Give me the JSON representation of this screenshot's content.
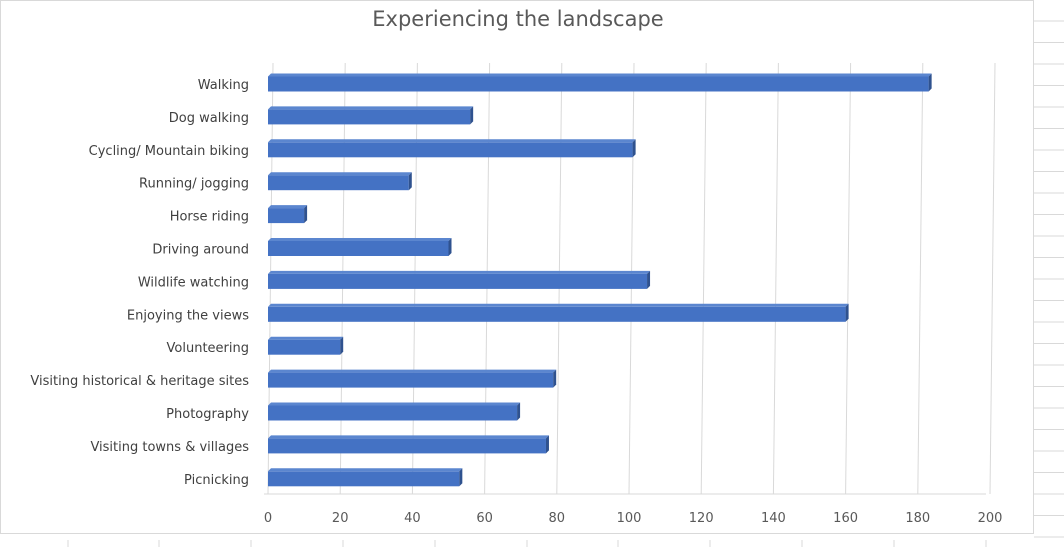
{
  "chart_data": {
    "type": "bar",
    "orientation": "horizontal",
    "title": "Experiencing the landscape",
    "xlabel": "",
    "ylabel": "",
    "categories": [
      "Walking",
      "Dog walking",
      "Cycling/ Mountain biking",
      "Running/ jogging",
      "Horse riding",
      "Driving around",
      "Wildlife watching",
      "Enjoying the views",
      "Volunteering",
      "Visiting historical & heritage sites",
      "Photography",
      "Visiting towns & villages",
      "Picnicking"
    ],
    "values": [
      183,
      56,
      101,
      39,
      10,
      50,
      105,
      160,
      20,
      79,
      69,
      77,
      53
    ],
    "xlim": [
      0,
      200
    ],
    "ticks": [
      0,
      20,
      40,
      60,
      80,
      100,
      120,
      140,
      160,
      180,
      200
    ],
    "grid": true,
    "legend": "none",
    "bar_color": "#4472c4",
    "bar_edge_color": "#2f528f"
  }
}
